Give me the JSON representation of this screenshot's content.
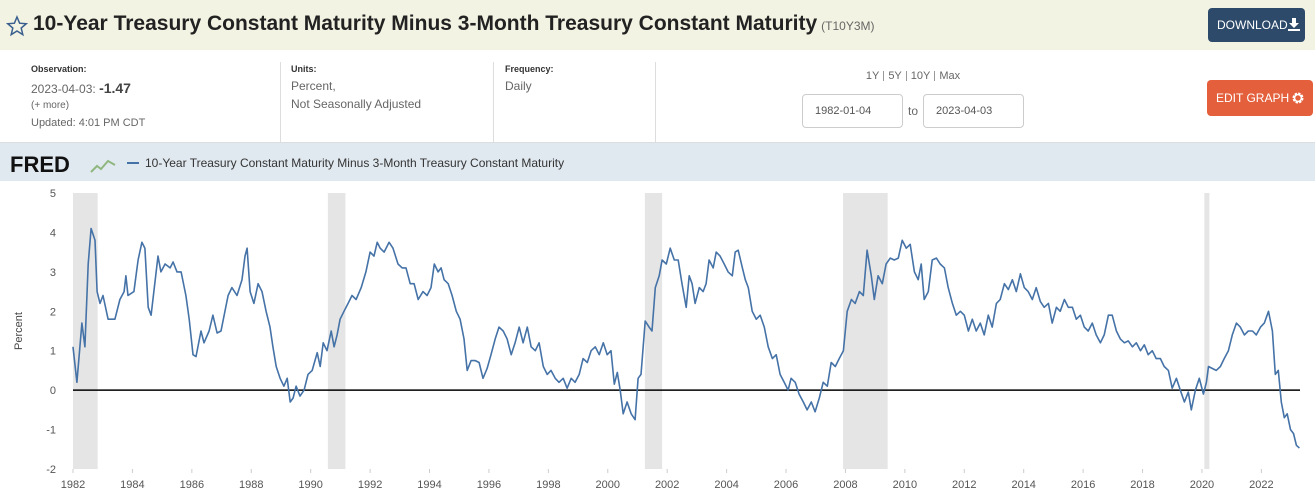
{
  "header": {
    "title": "10-Year Treasury Constant Maturity Minus 3-Month Treasury Constant Maturity",
    "series_id": "(T10Y3M)",
    "download": "DOWNLOAD"
  },
  "info": {
    "observation_label": "Observation:",
    "observation_date": "2023-04-03:",
    "observation_value": "-1.47",
    "more": "(+ more)",
    "updated": "Updated: 4:01 PM CDT",
    "units_label": "Units:",
    "units": [
      "Percent,",
      "Not Seasonally Adjusted"
    ],
    "frequency_label": "Frequency:",
    "frequency": "Daily"
  },
  "controls": {
    "ranges": [
      "1Y",
      "5Y",
      "10Y",
      "Max"
    ],
    "start_date": "1982-01-04",
    "to": "to",
    "end_date": "2023-04-03",
    "edit_graph": "EDIT GRAPH"
  },
  "chart_data": {
    "type": "line",
    "logo": "FRED",
    "y_label": "Percent",
    "x": [
      1982.0,
      1982.13,
      1982.3,
      1982.4,
      1982.51,
      1982.61,
      1982.74,
      1982.81,
      1982.91,
      1983.01,
      1983.18,
      1983.41,
      1983.58,
      1983.72,
      1983.78,
      1983.85,
      1984.05,
      1984.19,
      1984.32,
      1984.42,
      1984.53,
      1984.63,
      1984.86,
      1984.96,
      1985.1,
      1985.27,
      1985.37,
      1985.5,
      1985.64,
      1985.8,
      1985.91,
      1986.04,
      1986.14,
      1986.31,
      1986.41,
      1986.58,
      1986.71,
      1986.85,
      1986.98,
      1987.22,
      1987.35,
      1987.52,
      1987.69,
      1987.79,
      1987.86,
      1987.96,
      1988.09,
      1988.23,
      1988.36,
      1988.5,
      1988.63,
      1988.73,
      1988.84,
      1988.97,
      1989.1,
      1989.21,
      1989.31,
      1989.41,
      1989.51,
      1989.64,
      1989.78,
      1989.91,
      1990.05,
      1990.22,
      1990.32,
      1990.42,
      1990.55,
      1990.69,
      1990.79,
      1990.89,
      1990.99,
      1991.12,
      1991.26,
      1991.39,
      1991.53,
      1991.7,
      1991.86,
      1992.0,
      1992.13,
      1992.24,
      1992.34,
      1992.47,
      1992.64,
      1992.77,
      1992.94,
      1993.08,
      1993.21,
      1993.35,
      1993.48,
      1993.62,
      1993.78,
      1993.92,
      1994.05,
      1994.16,
      1994.29,
      1994.39,
      1994.49,
      1994.63,
      1994.76,
      1994.9,
      1995.03,
      1995.16,
      1995.27,
      1995.4,
      1995.54,
      1995.67,
      1995.8,
      1995.94,
      1996.07,
      1996.21,
      1996.34,
      1996.48,
      1996.61,
      1996.75,
      1996.88,
      1997.02,
      1997.15,
      1997.29,
      1997.42,
      1997.56,
      1997.69,
      1997.83,
      1997.96,
      1998.09,
      1998.23,
      1998.36,
      1998.5,
      1998.63,
      1998.77,
      1998.9,
      1999.04,
      1999.17,
      1999.31,
      1999.44,
      1999.58,
      1999.71,
      1999.85,
      1999.98,
      2000.11,
      2000.22,
      2000.32,
      2000.42,
      2000.52,
      2000.65,
      2000.79,
      2000.92,
      2001.02,
      2001.12,
      2001.26,
      2001.39,
      2001.49,
      2001.6,
      2001.73,
      2001.83,
      2001.97,
      2002.1,
      2002.24,
      2002.37,
      2002.5,
      2002.64,
      2002.74,
      2002.84,
      2002.94,
      2003.08,
      2003.21,
      2003.31,
      2003.41,
      2003.55,
      2003.65,
      2003.78,
      2003.92,
      2004.05,
      2004.19,
      2004.29,
      2004.39,
      2004.53,
      2004.63,
      2004.73,
      2004.86,
      2005.0,
      2005.13,
      2005.27,
      2005.4,
      2005.54,
      2005.67,
      2005.8,
      2005.94,
      2006.07,
      2006.17,
      2006.31,
      2006.44,
      2006.58,
      2006.71,
      2006.85,
      2006.98,
      2007.12,
      2007.25,
      2007.39,
      2007.52,
      2007.66,
      2007.79,
      2007.93,
      2008.06,
      2008.2,
      2008.33,
      2008.47,
      2008.6,
      2008.73,
      2008.87,
      2008.97,
      2009.1,
      2009.24,
      2009.37,
      2009.51,
      2009.64,
      2009.78,
      2009.91,
      2010.05,
      2010.18,
      2010.32,
      2010.45,
      2010.55,
      2010.65,
      2010.79,
      2010.92,
      2011.06,
      2011.19,
      2011.33,
      2011.46,
      2011.6,
      2011.73,
      2011.87,
      2012.0,
      2012.14,
      2012.27,
      2012.4,
      2012.54,
      2012.67,
      2012.81,
      2012.94,
      2013.08,
      2013.21,
      2013.35,
      2013.48,
      2013.62,
      2013.75,
      2013.89,
      2014.02,
      2014.15,
      2014.29,
      2014.42,
      2014.56,
      2014.69,
      2014.83,
      2014.96,
      2015.1,
      2015.23,
      2015.37,
      2015.5,
      2015.64,
      2015.77,
      2015.91,
      2016.04,
      2016.17,
      2016.31,
      2016.44,
      2016.58,
      2016.71,
      2016.85,
      2016.98,
      2017.12,
      2017.25,
      2017.39,
      2017.52,
      2017.66,
      2017.79,
      2017.93,
      2018.06,
      2018.19,
      2018.33,
      2018.46,
      2018.6,
      2018.73,
      2018.87,
      2019.0,
      2019.14,
      2019.27,
      2019.41,
      2019.54,
      2019.64,
      2019.78,
      2019.91,
      2020.05,
      2020.15,
      2020.22,
      2020.35,
      2020.48,
      2020.62,
      2020.75,
      2020.89,
      2021.02,
      2021.16,
      2021.29,
      2021.43,
      2021.56,
      2021.7,
      2021.83,
      2021.97,
      2022.1,
      2022.24,
      2022.37,
      2022.47,
      2022.57,
      2022.67,
      2022.77,
      2022.87,
      2022.98,
      2023.08,
      2023.18,
      2023.28
    ],
    "series": [
      {
        "name": "10-Year Treasury Constant Maturity Minus 3-Month Treasury Constant Maturity",
        "color": "#4572a7",
        "values": [
          1.1,
          0.2,
          1.7,
          1.1,
          3.2,
          4.1,
          3.8,
          2.5,
          2.2,
          2.4,
          1.8,
          1.8,
          2.3,
          2.5,
          2.9,
          2.4,
          2.5,
          3.3,
          3.75,
          3.6,
          2.1,
          1.9,
          3.4,
          3.0,
          3.2,
          3.1,
          3.25,
          3.0,
          3.0,
          2.4,
          1.8,
          0.9,
          0.85,
          1.5,
          1.2,
          1.5,
          1.9,
          1.45,
          1.5,
          2.4,
          2.6,
          2.4,
          2.8,
          3.4,
          3.6,
          2.5,
          2.2,
          2.7,
          2.5,
          2.0,
          1.6,
          1.1,
          0.6,
          0.3,
          0.1,
          0.3,
          -0.3,
          -0.2,
          0.1,
          -0.15,
          0.0,
          0.4,
          0.5,
          0.95,
          0.6,
          1.2,
          1.0,
          1.5,
          1.1,
          1.4,
          1.8,
          2.0,
          2.2,
          2.4,
          2.3,
          2.6,
          3.0,
          3.5,
          3.4,
          3.75,
          3.6,
          3.5,
          3.75,
          3.6,
          3.2,
          3.1,
          3.1,
          2.7,
          2.7,
          2.3,
          2.5,
          2.4,
          2.6,
          3.2,
          3.0,
          3.1,
          2.8,
          2.7,
          2.4,
          2.0,
          1.8,
          1.3,
          0.5,
          0.75,
          0.75,
          0.7,
          0.3,
          0.55,
          0.9,
          1.3,
          1.6,
          1.5,
          1.3,
          0.9,
          1.2,
          1.6,
          1.2,
          1.6,
          1.1,
          1.0,
          1.2,
          0.6,
          0.4,
          0.5,
          0.3,
          0.2,
          0.3,
          0.05,
          0.3,
          0.2,
          0.4,
          0.8,
          0.7,
          1.0,
          1.1,
          0.9,
          1.2,
          0.9,
          1.0,
          0.15,
          0.45,
          0.0,
          -0.6,
          -0.3,
          -0.6,
          -0.75,
          0.3,
          0.4,
          1.75,
          1.6,
          1.5,
          2.6,
          2.9,
          3.3,
          3.2,
          3.6,
          3.3,
          3.3,
          2.7,
          2.1,
          2.9,
          2.7,
          2.2,
          2.6,
          2.5,
          2.7,
          3.3,
          3.1,
          3.5,
          3.4,
          3.2,
          3.0,
          2.9,
          3.5,
          3.55,
          3.1,
          2.8,
          2.6,
          2.0,
          1.8,
          1.9,
          1.6,
          1.1,
          0.8,
          0.9,
          0.4,
          0.2,
          0.0,
          0.3,
          0.2,
          -0.1,
          -0.3,
          -0.5,
          -0.3,
          -0.55,
          -0.2,
          0.2,
          0.1,
          0.7,
          0.6,
          0.8,
          1.0,
          2.0,
          2.3,
          2.2,
          2.5,
          2.4,
          3.55,
          2.9,
          2.3,
          2.9,
          2.7,
          3.2,
          3.35,
          3.3,
          3.35,
          3.8,
          3.6,
          3.7,
          3.0,
          2.8,
          3.2,
          2.3,
          2.5,
          3.3,
          3.35,
          3.2,
          3.1,
          2.6,
          2.2,
          1.9,
          2.0,
          1.9,
          1.5,
          1.8,
          1.5,
          1.7,
          1.4,
          1.9,
          1.6,
          2.2,
          2.3,
          2.7,
          2.55,
          2.8,
          2.5,
          2.95,
          2.6,
          2.5,
          2.3,
          2.6,
          2.25,
          2.1,
          2.2,
          1.7,
          2.1,
          2.0,
          2.3,
          2.1,
          2.1,
          1.8,
          1.9,
          1.6,
          1.5,
          1.7,
          1.4,
          1.2,
          1.4,
          1.9,
          1.9,
          1.5,
          1.3,
          1.2,
          1.25,
          1.1,
          1.2,
          1.0,
          1.15,
          0.9,
          1.0,
          0.8,
          0.8,
          0.6,
          0.5,
          0.05,
          0.3,
          0.0,
          -0.3,
          -0.05,
          -0.5,
          0.0,
          0.3,
          -0.1,
          0.2,
          0.6,
          0.55,
          0.5,
          0.6,
          0.8,
          1.0,
          1.4,
          1.7,
          1.6,
          1.4,
          1.5,
          1.5,
          1.4,
          1.6,
          1.7,
          2.0,
          1.5,
          0.4,
          0.5,
          -0.3,
          -0.7,
          -0.6,
          -1.0,
          -1.1,
          -1.4,
          -1.47
        ]
      }
    ],
    "xlim": [
      1982,
      2023.3
    ],
    "xticks": [
      1982,
      1984,
      1986,
      1988,
      1990,
      1992,
      1994,
      1996,
      1998,
      2000,
      2002,
      2004,
      2006,
      2008,
      2010,
      2012,
      2014,
      2016,
      2018,
      2020,
      2022
    ],
    "ylim": [
      -2,
      5
    ],
    "yticks": [
      -2,
      -1,
      0,
      1,
      2,
      3,
      4,
      5
    ],
    "grid": false,
    "hline": 0,
    "shaded": [
      [
        1981.58,
        1982.83
      ],
      [
        1990.58,
        1991.17
      ],
      [
        2001.25,
        2001.83
      ],
      [
        2007.92,
        2009.42
      ],
      [
        2020.08,
        2020.25
      ]
    ]
  }
}
